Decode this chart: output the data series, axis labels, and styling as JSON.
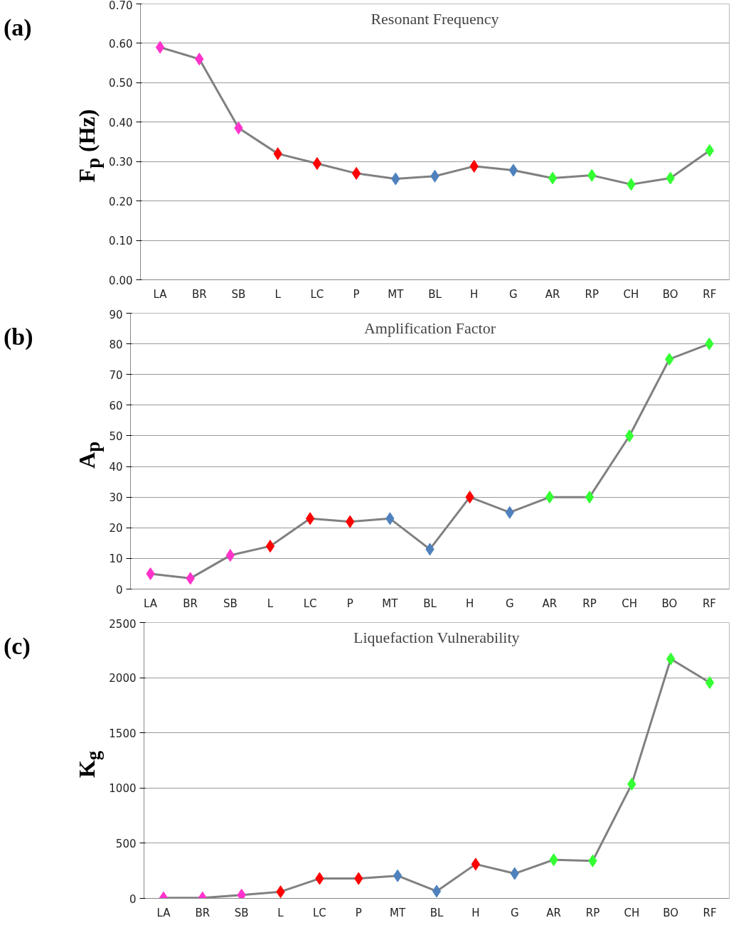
{
  "chart_data": [
    {
      "type": "line",
      "title": "Resonant Frequency",
      "ylabel": "F$_{p}$ (Hz)",
      "annotations": [
        "(a)"
      ],
      "categories": [
        "LA",
        "BR",
        "SB",
        "L",
        "LC",
        "P",
        "MT",
        "BL",
        "H",
        "G",
        "AR",
        "RP",
        "CH",
        "BO",
        "RF"
      ],
      "series": [
        {
          "color": "#808080",
          "colors": [
            "#ff33cc",
            "#ff33cc",
            "#ff33cc",
            "#ff0000",
            "#ff0000",
            "#ff0000",
            "#4f81bd",
            "#4f81bd",
            "#ff0000",
            "#4f81bd",
            "#33ff33",
            "#33ff33",
            "#33ff33",
            "#33ff33",
            "#33ff33"
          ],
          "values": [
            0.59,
            0.56,
            0.385,
            0.32,
            0.295,
            0.27,
            0.256,
            0.263,
            0.288,
            0.278,
            0.258,
            0.265,
            0.242,
            0.258,
            0.328
          ]
        }
      ],
      "ylim": [
        0,
        0.7
      ],
      "yticks": [
        {
          "value": 0,
          "label": "0.00"
        },
        {
          "value": 0.1,
          "label": "0.10"
        },
        {
          "value": 0.2,
          "label": "0.20"
        },
        {
          "value": 0.3,
          "label": "0.30"
        },
        {
          "value": 0.4,
          "label": "0.40"
        },
        {
          "value": 0.5,
          "label": "0.50"
        },
        {
          "value": 0.6,
          "label": "0.60"
        },
        {
          "value": 0.7,
          "label": "0.70"
        }
      ],
      "grid": "y",
      "marker": "diamond",
      "line_style": "solid"
    },
    {
      "type": "line",
      "title": "Amplification Factor",
      "ylabel": "A$_{p}$",
      "annotations": [
        "(b)"
      ],
      "categories": [
        "LA",
        "BR",
        "SB",
        "L",
        "LC",
        "P",
        "MT",
        "BL",
        "H",
        "G",
        "AR",
        "RP",
        "CH",
        "BO",
        "RF"
      ],
      "series": [
        {
          "color": "#808080",
          "colors": [
            "#ff33cc",
            "#ff33cc",
            "#ff33cc",
            "#ff0000",
            "#ff0000",
            "#ff0000",
            "#4f81bd",
            "#4f81bd",
            "#ff0000",
            "#4f81bd",
            "#33ff33",
            "#33ff33",
            "#33ff33",
            "#33ff33",
            "#33ff33"
          ],
          "values": [
            5,
            3.5,
            11,
            14,
            23,
            22,
            23,
            13,
            30,
            25,
            30,
            30,
            50,
            75,
            80
          ]
        }
      ],
      "ylim": [
        0,
        90
      ],
      "yticks": [
        0,
        10,
        20,
        30,
        40,
        50,
        60,
        70,
        80,
        90
      ],
      "grid": "y",
      "marker": "diamond",
      "line_style": "solid"
    },
    {
      "type": "line",
      "title": "Liquefaction Vulnerability",
      "ylabel": "K$_{g}$",
      "annotations": [
        "(c)"
      ],
      "categories": [
        "LA",
        "BR",
        "SB",
        "L",
        "LC",
        "P",
        "MT",
        "BL",
        "H",
        "G",
        "AR",
        "RP",
        "CH",
        "BO",
        "RF"
      ],
      "series": [
        {
          "color": "#808080",
          "colors": [
            "#ff33cc",
            "#ff33cc",
            "#ff33cc",
            "#ff0000",
            "#ff0000",
            "#ff0000",
            "#4f81bd",
            "#4f81bd",
            "#ff0000",
            "#4f81bd",
            "#33ff33",
            "#33ff33",
            "#33ff33",
            "#33ff33",
            "#33ff33"
          ],
          "values": [
            5,
            5,
            30,
            60,
            180,
            180,
            205,
            65,
            310,
            225,
            350,
            340,
            1035,
            2170,
            1955
          ]
        }
      ],
      "ylim": [
        0,
        2500
      ],
      "yticks": [
        0,
        500,
        1000,
        1500,
        2000,
        2500
      ],
      "grid": "y",
      "marker": "diamond",
      "line_style": "solid"
    }
  ]
}
